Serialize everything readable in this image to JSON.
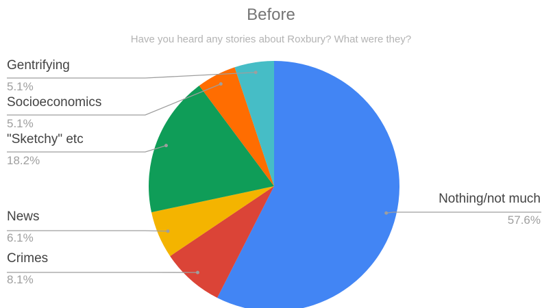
{
  "chart_data": {
    "type": "pie",
    "title": "Before",
    "subtitle": "Have you heard any stories about Roxbury?  What were they?",
    "start_angle_deg": 0,
    "direction": "clockwise",
    "slices": [
      {
        "label": "Nothing/not much",
        "value": 57.6,
        "value_label": "57.6%",
        "color": "#4285f4"
      },
      {
        "label": "Crimes",
        "value": 8.1,
        "value_label": "8.1%",
        "color": "#db4437"
      },
      {
        "label": "News",
        "value": 6.1,
        "value_label": "6.1%",
        "color": "#f4b400"
      },
      {
        "label": "\"Sketchy\" etc",
        "value": 18.2,
        "value_label": "18.2%",
        "color": "#0f9d58"
      },
      {
        "label": "Socioeconomics",
        "value": 5.1,
        "value_label": "5.1%",
        "color": "#ff6d01"
      },
      {
        "label": "Gentrifying",
        "value": 5.1,
        "value_label": "5.1%",
        "color": "#46bdc6"
      }
    ],
    "legend": "none"
  }
}
